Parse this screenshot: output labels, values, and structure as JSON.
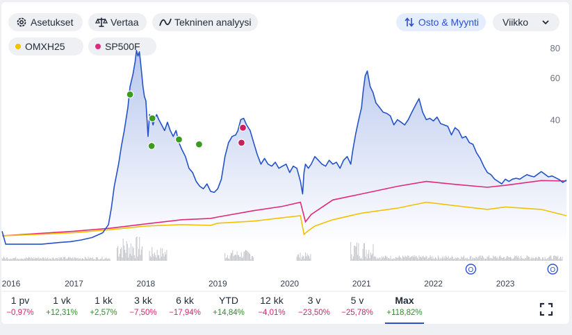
{
  "toolbar": {
    "settings_label": "Asetukset",
    "compare_label": "Vertaa",
    "technical_label": "Tekninen analyysi",
    "trades_label": "Osto & Myynti",
    "interval_label": "Viikko"
  },
  "icons": {
    "settings": "gear-icon",
    "compare": "scale-icon",
    "technical": "trend-line-icon",
    "trades": "swap-arrows-icon",
    "interval": "chevron-down-icon",
    "expand": "fullscreen-icon"
  },
  "comparisons": [
    {
      "label": "OMXH25",
      "color": "#f2c200"
    },
    {
      "label": "SP500F",
      "color": "#e2287a"
    }
  ],
  "periods": [
    {
      "label": "1 pv",
      "change": "−0,97%",
      "dir": "neg"
    },
    {
      "label": "1 vk",
      "change": "+12,31%",
      "dir": "pos"
    },
    {
      "label": "1 kk",
      "change": "+2,57%",
      "dir": "pos"
    },
    {
      "label": "3 kk",
      "change": "−7,50%",
      "dir": "neg"
    },
    {
      "label": "6 kk",
      "change": "−17,94%",
      "dir": "neg"
    },
    {
      "label": "YTD",
      "change": "+14,84%",
      "dir": "pos"
    },
    {
      "label": "12 kk",
      "change": "−4,01%",
      "dir": "neg"
    },
    {
      "label": "3 v",
      "change": "−23,50%",
      "dir": "neg"
    },
    {
      "label": "5 v",
      "change": "−25,78%",
      "dir": "neg"
    },
    {
      "label": "Max",
      "change": "+118,82%",
      "dir": "pos",
      "active": true
    }
  ],
  "chart_data": {
    "type": "line",
    "title": "",
    "xlabel": "",
    "ylabel": "",
    "y_scale": "log",
    "ylim": [
      9,
      85
    ],
    "y_ticks": [
      40,
      60,
      80
    ],
    "x_ticks": [
      "2016",
      "2017",
      "2018",
      "2019",
      "2020",
      "2021",
      "2022",
      "2023"
    ],
    "xlim": [
      2016.0,
      2023.85
    ],
    "grid": false,
    "colors": {
      "main": "#2352c8",
      "fill": "#cddbf8",
      "buy": "#3e9b22",
      "sell": "#c8205e",
      "volume": "#c5c7cc"
    },
    "series": [
      {
        "key": "main",
        "x": [
          2016.0,
          2016.05,
          2016.3,
          2016.55,
          2016.8,
          2016.95,
          2017.1,
          2017.25,
          2017.4,
          2017.48,
          2017.52,
          2017.56,
          2017.62,
          2017.66,
          2017.7,
          2017.75,
          2017.78,
          2017.82,
          2017.85,
          2017.87,
          2017.89,
          2017.91,
          2017.93,
          2017.96,
          2017.98,
          2018.0,
          2018.03,
          2018.05,
          2018.08,
          2018.1,
          2018.12,
          2018.15,
          2018.18,
          2018.22,
          2018.26,
          2018.3,
          2018.34,
          2018.38,
          2018.42,
          2018.46,
          2018.5,
          2018.55,
          2018.6,
          2018.65,
          2018.7,
          2018.75,
          2018.8,
          2018.85,
          2018.9,
          2018.95,
          2019.0,
          2019.05,
          2019.1,
          2019.15,
          2019.2,
          2019.25,
          2019.28,
          2019.32,
          2019.36,
          2019.4,
          2019.45,
          2019.5,
          2019.55,
          2019.6,
          2019.65,
          2019.7,
          2019.75,
          2019.8,
          2019.85,
          2019.9,
          2019.95,
          2020.0,
          2020.05,
          2020.1,
          2020.15,
          2020.18,
          2020.2,
          2020.22,
          2020.26,
          2020.3,
          2020.35,
          2020.4,
          2020.45,
          2020.5,
          2020.55,
          2020.6,
          2020.65,
          2020.7,
          2020.75,
          2020.8,
          2020.85,
          2020.88,
          2020.92,
          2020.96,
          2021.0,
          2021.02,
          2021.05,
          2021.08,
          2021.12,
          2021.16,
          2021.2,
          2021.25,
          2021.3,
          2021.35,
          2021.4,
          2021.45,
          2021.5,
          2021.55,
          2021.6,
          2021.65,
          2021.7,
          2021.75,
          2021.8,
          2021.85,
          2021.9,
          2021.95,
          2022.0,
          2022.05,
          2022.1,
          2022.15,
          2022.2,
          2022.25,
          2022.3,
          2022.35,
          2022.4,
          2022.45,
          2022.5,
          2022.55,
          2022.6,
          2022.65,
          2022.7,
          2022.75,
          2022.8,
          2022.85,
          2022.9,
          2022.95,
          2023.0,
          2023.05,
          2023.1,
          2023.15,
          2023.2,
          2023.25,
          2023.3,
          2023.35,
          2023.4,
          2023.45,
          2023.5,
          2023.55,
          2023.6,
          2023.65,
          2023.7,
          2023.75,
          2023.8,
          2023.85
        ],
        "y": [
          13.6,
          12.0,
          12.0,
          12.0,
          12.2,
          12.3,
          12.5,
          12.8,
          13.4,
          14.5,
          17.0,
          21.0,
          26.0,
          31.0,
          36.0,
          45.0,
          55.0,
          62.0,
          70.0,
          78.0,
          74.0,
          77.0,
          68.0,
          55.0,
          50.0,
          48.0,
          34.0,
          42.0,
          40.0,
          38.0,
          40.0,
          42.0,
          40.0,
          38.0,
          36.0,
          39.0,
          36.0,
          34.0,
          36.0,
          32.0,
          30.0,
          28.0,
          25.0,
          24.0,
          22.0,
          21.0,
          20.5,
          21.5,
          20.0,
          19.8,
          20.5,
          22.5,
          28.0,
          32.0,
          34.0,
          34.5,
          36.0,
          40.0,
          40.5,
          38.0,
          36.0,
          32.0,
          28.5,
          26.0,
          27.5,
          26.0,
          25.5,
          26.5,
          25.0,
          25.5,
          26.0,
          24.0,
          25.5,
          25.0,
          22.0,
          19.5,
          24.0,
          26.0,
          25.0,
          26.0,
          28.0,
          27.0,
          26.0,
          25.5,
          27.0,
          26.0,
          26.5,
          25.0,
          27.0,
          28.0,
          26.0,
          30.0,
          35.0,
          40.0,
          45.0,
          52.0,
          61.0,
          64.0,
          55.0,
          52.0,
          47.0,
          45.0,
          43.0,
          42.5,
          41.5,
          38.0,
          40.0,
          39.0,
          38.0,
          40.0,
          43.0,
          46.0,
          49.0,
          43.0,
          40.0,
          40.5,
          39.5,
          41.0,
          38.5,
          38.0,
          37.5,
          34.5,
          37.0,
          36.0,
          33.5,
          34.0,
          32.0,
          31.5,
          29.0,
          27.5,
          25.5,
          24.0,
          23.5,
          22.5,
          22.0,
          21.5,
          22.5,
          22.0,
          22.5,
          22.7,
          22.5,
          23.0,
          23.5,
          23.2,
          23.0,
          23.6,
          24.2,
          23.6,
          23.0,
          23.2,
          22.8,
          22.4,
          21.8,
          22.3
        ]
      },
      {
        "key": "SP500F",
        "x": [
          2016.0,
          2016.5,
          2017.0,
          2017.5,
          2018.0,
          2018.5,
          2018.9,
          2019.0,
          2019.5,
          2019.9,
          2020.15,
          2020.22,
          2020.3,
          2020.6,
          2021.0,
          2021.5,
          2021.9,
          2022.3,
          2022.75,
          2023.0,
          2023.5,
          2023.85
        ],
        "y": [
          13.0,
          13.3,
          13.6,
          14.0,
          14.6,
          15.2,
          15.4,
          15.6,
          16.6,
          17.3,
          18.0,
          14.9,
          16.0,
          18.4,
          19.5,
          21.0,
          22.0,
          21.4,
          20.8,
          21.2,
          22.2,
          22.1
        ]
      },
      {
        "key": "OMXH25",
        "x": [
          2016.0,
          2016.5,
          2017.0,
          2017.5,
          2018.0,
          2018.5,
          2018.9,
          2019.0,
          2019.5,
          2019.9,
          2020.15,
          2020.2,
          2020.25,
          2020.35,
          2020.6,
          2021.0,
          2021.5,
          2021.9,
          2022.3,
          2022.75,
          2023.0,
          2023.5,
          2023.85
        ],
        "y": [
          13.0,
          13.2,
          13.4,
          13.8,
          14.3,
          14.5,
          14.4,
          14.7,
          15.0,
          15.5,
          15.8,
          13.2,
          13.6,
          14.3,
          15.2,
          16.2,
          17.0,
          18.0,
          17.4,
          16.8,
          17.2,
          16.8,
          15.8
        ]
      }
    ],
    "markers": [
      {
        "type": "buy",
        "x": 2017.78,
        "y": 51.0
      },
      {
        "type": "buy",
        "x": 2018.09,
        "y": 40.5
      },
      {
        "type": "buy",
        "x": 2018.08,
        "y": 31.0
      },
      {
        "type": "buy",
        "x": 2018.46,
        "y": 33.0
      },
      {
        "type": "buy",
        "x": 2018.74,
        "y": 31.5
      },
      {
        "type": "sell",
        "x": 2019.35,
        "y": 37.0
      },
      {
        "type": "sell",
        "x": 2019.33,
        "y": 32.0
      }
    ],
    "event_markers": [
      {
        "label": "O",
        "x": 2022.52
      },
      {
        "label": "O",
        "x": 2023.62
      }
    ]
  }
}
